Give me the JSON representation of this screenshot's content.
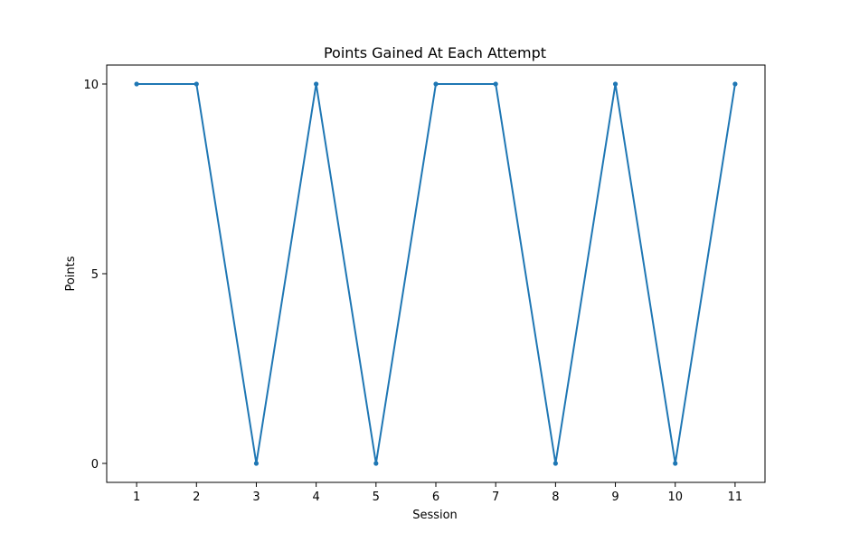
{
  "chart_data": {
    "type": "line",
    "title": "Points Gained At Each Attempt",
    "xlabel": "Session",
    "ylabel": "Points",
    "x": [
      1,
      2,
      3,
      4,
      5,
      6,
      7,
      8,
      9,
      10,
      11
    ],
    "series": [
      {
        "values": [
          10,
          10,
          0,
          10,
          0,
          10,
          10,
          0,
          10,
          0,
          10
        ],
        "color": "#1f77b4",
        "marker": "circle"
      }
    ],
    "xticks": [
      "1",
      "2",
      "3",
      "4",
      "5",
      "6",
      "7",
      "8",
      "9",
      "10",
      "11"
    ],
    "yticks": [
      "0",
      "5",
      "10"
    ],
    "ytick_values": [
      0,
      5,
      10
    ],
    "xlim": [
      0.5,
      11.5
    ],
    "ylim": [
      -0.5,
      10.5
    ],
    "grid": false,
    "legend": "none"
  }
}
